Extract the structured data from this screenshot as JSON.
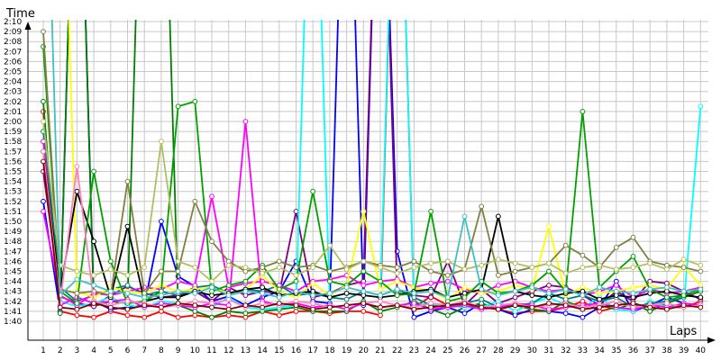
{
  "chart_data": {
    "type": "line",
    "xlabel": "Laps",
    "ylabel": "Time",
    "x_ticks": [
      "1",
      "2",
      "3",
      "4",
      "5",
      "6",
      "7",
      "8",
      "9",
      "10",
      "11",
      "12",
      "13",
      "14",
      "15",
      "16",
      "17",
      "18",
      "19",
      "20",
      "21",
      "22",
      "23",
      "24",
      "25",
      "26",
      "27",
      "28",
      "29",
      "30",
      "31",
      "32",
      "33",
      "34",
      "35",
      "36",
      "37",
      "38",
      "39",
      "40"
    ],
    "y_ticks": [
      "1:40",
      "1:41",
      "1:42",
      "1:43",
      "1:44",
      "1:45",
      "1:46",
      "1:47",
      "1:48",
      "1:49",
      "1:50",
      "1:51",
      "1:52",
      "1:53",
      "1:54",
      "1:55",
      "1:56",
      "1:57",
      "1:58",
      "1:59",
      "2:00",
      "2:01",
      "2:02",
      "2:03",
      "2:04",
      "2:05",
      "2:06",
      "2:07",
      "2:08",
      "2:09",
      "2:10"
    ],
    "y_range_seconds": [
      99,
      132
    ],
    "x_range": [
      1,
      40
    ],
    "grid": true,
    "legend": "none",
    "series": [
      {
        "color": "#ff0000",
        "values": [
          121,
          101,
          100.6,
          100.4,
          101,
          100.6,
          100.4,
          101,
          100.4,
          100.6,
          100.4,
          100.6,
          100.4,
          101,
          100.6,
          101,
          101,
          100.8,
          101,
          101,
          100.6,
          160,
          101.4,
          102.5,
          101.6,
          101.4,
          101.6,
          101.2,
          100.8,
          101,
          101,
          101.4,
          102,
          101,
          101.4,
          101.2,
          101.8,
          101.4,
          101.4,
          102
        ]
      },
      {
        "color": "#0000ff",
        "values": [
          112,
          101,
          160,
          102,
          101.2,
          101.4,
          101.6,
          110,
          104.5,
          103.5,
          102,
          102.5,
          101.6,
          102.4,
          103,
          106,
          102,
          101.8,
          160,
          101.6,
          160,
          107,
          100.4,
          101,
          101.4,
          100.8,
          101.8,
          101.2,
          100.6,
          101.2,
          101,
          100.8,
          100.4,
          101.4,
          104,
          101,
          101.6,
          102.4,
          101.8,
          101.6
        ]
      },
      {
        "color": "#008000",
        "values": [
          122,
          100.8,
          160,
          101.5,
          102,
          101.8,
          160,
          160,
          101.6,
          101,
          100.4,
          101,
          100.8,
          101,
          101.2,
          101.4,
          101,
          101,
          101,
          102,
          101,
          101.4,
          102,
          101.2,
          100.6,
          101.4,
          101.8,
          101.2,
          101.6,
          101.2,
          101,
          102,
          101.4,
          101.6,
          101.2,
          101.8,
          101,
          101.8,
          102.4,
          103
        ]
      },
      {
        "color": "#800080",
        "values": [
          115,
          102.5,
          101.8,
          101.5,
          102.6,
          103.5,
          102.8,
          102.4,
          102.6,
          103,
          102,
          103.4,
          102.6,
          103,
          102.8,
          111,
          102.4,
          102.8,
          103.6,
          104,
          160,
          102.8,
          102.6,
          102.4,
          106,
          101.6,
          103.2,
          101.8,
          102.4,
          103,
          103.6,
          103.4,
          102.6,
          101.6,
          103,
          102,
          104,
          103.8,
          103,
          102.2
        ]
      },
      {
        "color": "#00ffff",
        "values": [
          118,
          102,
          101.5,
          101.8,
          102.4,
          101.6,
          101.4,
          102,
          101.8,
          101.6,
          101.4,
          102.4,
          101.4,
          101.2,
          101.4,
          101.6,
          160,
          101.4,
          101.6,
          101.8,
          102,
          160,
          101.6,
          101.8,
          101.6,
          101.4,
          101.4,
          102,
          101,
          101.8,
          102.4,
          101.6,
          101.4,
          102.4,
          101.2,
          101,
          102,
          101.4,
          101.6,
          121.5
        ]
      },
      {
        "color": "#008080",
        "values": [
          119,
          103.4,
          102,
          102.6,
          103.2,
          103.6,
          102.6,
          103,
          102.6,
          103.4,
          103.6,
          102.8,
          103.2,
          103,
          103.6,
          102.6,
          102.8,
          102.4,
          102.2,
          103,
          102.6,
          103.2,
          102.4,
          101.6,
          101.4,
          101.8,
          102.2,
          101.4,
          101.6,
          101.8,
          102.8,
          102.2,
          102.6,
          102,
          102.4,
          101.4,
          101.8,
          102,
          102.6,
          102.4
        ]
      },
      {
        "color": "#ff00ff",
        "values": [
          111,
          102.6,
          101.6,
          102.8,
          102.6,
          103,
          103.4,
          103.2,
          104,
          103.6,
          112.5,
          103.4,
          103.8,
          104,
          103.6,
          103,
          104,
          104.2,
          104.6,
          103.6,
          104,
          104.2,
          103.4,
          103.8,
          104,
          103.2,
          102.8,
          103.6,
          104,
          103.4,
          103,
          103.2,
          102.6,
          103,
          103.6,
          102.4,
          103.2,
          102.8,
          103,
          103.4
        ]
      },
      {
        "color": "#ff00ff",
        "values": [
          118,
          101.6,
          102.4,
          101.8,
          102,
          102.2,
          101.4,
          101.8,
          101.6,
          101.4,
          101.8,
          101.6,
          120,
          102,
          101.6,
          101.8,
          101.4,
          101.6,
          101.2,
          101.8,
          101.4,
          101.6,
          101.8,
          101.2,
          101.4,
          101.6,
          101.2,
          101.4,
          101.8,
          101.6,
          101.2,
          101.4,
          101.6,
          101.8,
          101.4,
          101.2,
          101.6,
          101.4,
          101.8,
          101.6
        ]
      },
      {
        "color": "#ffff00",
        "values": [
          160,
          160,
          103,
          102.4,
          103.4,
          103,
          102.8,
          103.6,
          103,
          103.2,
          103.4,
          102.8,
          103.2,
          104.6,
          103,
          102.4,
          103.8,
          102.6,
          103.6,
          111,
          103.2,
          104,
          103.4,
          103,
          102.2,
          103.4,
          102.8,
          103,
          103.6,
          103.2,
          109.5,
          102.6,
          103.4,
          102.8,
          103,
          103.4,
          103.6,
          103.2,
          105.5,
          103.6
        ]
      },
      {
        "color": "#000000",
        "values": [
          117,
          103,
          113,
          108,
          102.4,
          109.5,
          102,
          102.4,
          102.4,
          103,
          102.6,
          102.8,
          103.2,
          103.4,
          102.6,
          102.8,
          103,
          102.4,
          102.8,
          102.6,
          102.4,
          102.6,
          103,
          103.2,
          102.4,
          102.8,
          103.2,
          110.5,
          103,
          102.6,
          102.4,
          102.8,
          103,
          102.2,
          102.6,
          102.4,
          102.8,
          103,
          102.6,
          102.4
        ]
      },
      {
        "color": "#00a000",
        "values": [
          127.5,
          103,
          101.8,
          115,
          106,
          101.8,
          102,
          103,
          121.5,
          122,
          103,
          103.6,
          104,
          105.6,
          103.2,
          104,
          113,
          104,
          103.6,
          105,
          104,
          102.6,
          102.8,
          111,
          102,
          102.4,
          104,
          102.8,
          103,
          103.6,
          105,
          103,
          121,
          103.4,
          105,
          106.5,
          103.2,
          102.4,
          102.6,
          103.2
        ]
      },
      {
        "color": "#808040",
        "values": [
          129,
          103.2,
          102.8,
          103,
          102.6,
          114,
          102.8,
          105,
          105,
          112,
          108,
          106,
          105,
          105.4,
          106,
          105.4,
          105.6,
          105,
          105.4,
          106,
          105.6,
          105.4,
          106,
          105,
          104.6,
          105.2,
          111.5,
          104.6,
          105,
          105.4,
          105.8,
          107.6,
          106.6,
          105.4,
          107.4,
          108.4,
          106,
          105.6,
          105.4,
          105
        ]
      },
      {
        "color": "#b0c060",
        "values": [
          120,
          105.6,
          105,
          104.6,
          105.2,
          104.6,
          105.4,
          118,
          106,
          105.4,
          104,
          105.6,
          105.4,
          104.8,
          105.4,
          104.6,
          105.4,
          107.6,
          105.2,
          106,
          105.4,
          104.8,
          105.4,
          105.8,
          106,
          105.2,
          105.6,
          106.2,
          105.8,
          105.4,
          105.8,
          104.8,
          105.4,
          105.6,
          105.2,
          105.4,
          105.8,
          105.2,
          106.2,
          105.6
        ]
      },
      {
        "color": "#ff80c0",
        "values": [
          117,
          101.8,
          115.5,
          102,
          101.6,
          102,
          101.8,
          101.4,
          101.6,
          102,
          101.8,
          102.2,
          101.4,
          101.8,
          101.6,
          102,
          101.8,
          101.4,
          101.6,
          101.8,
          102,
          101.6,
          101.4,
          101.8,
          101.6,
          102,
          101.4,
          101.6,
          101.8,
          101.4,
          101.6,
          101.8,
          101.4,
          101.6,
          102,
          101.4,
          101.6,
          101.8,
          101.4,
          101.6
        ]
      },
      {
        "color": "#40c0c0",
        "values": [
          160,
          102.6,
          104.2,
          103.6,
          103,
          102.8,
          102.4,
          102.6,
          103,
          102.8,
          103.4,
          102.6,
          103,
          102.8,
          102.4,
          103,
          102.6,
          102.8,
          103.4,
          103,
          102.6,
          103.2,
          102.8,
          103,
          102.4,
          110.5,
          103.2,
          102.6,
          103,
          103.4,
          102.8,
          103.2,
          102.6,
          103.4,
          103,
          102.8,
          103.2,
          103.4,
          103,
          103.2
        ]
      },
      {
        "color": "#800000",
        "values": [
          116,
          101.4,
          101.2,
          101.8,
          101.4,
          101.2,
          101.6,
          101.4,
          101.8,
          101.6,
          101.4,
          101.2,
          101.6,
          101.4,
          101.8,
          101.6,
          101.2,
          101.4,
          101.6,
          101.8,
          101.4,
          101.6,
          101.2,
          101.4,
          101.6,
          101.8,
          101.4,
          101.2,
          101.6,
          101.4,
          101.8,
          101.6,
          101.2,
          101.4,
          101.6,
          101.8,
          101.4,
          101.2,
          101.6,
          101.4
        ]
      }
    ]
  }
}
